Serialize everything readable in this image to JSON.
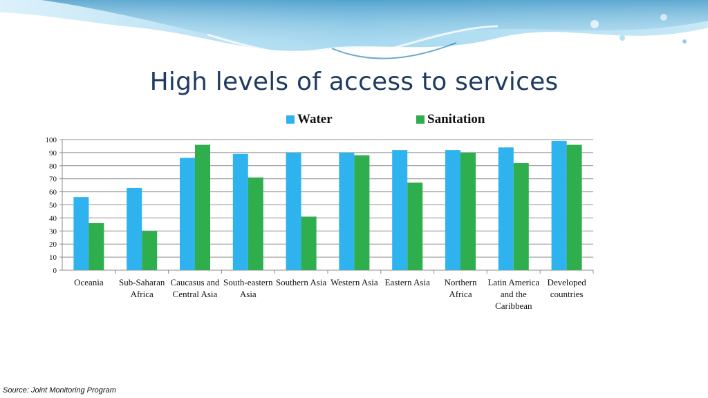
{
  "slide": {
    "title": "High levels of access to services",
    "source": "Source: Joint Monitoring Program"
  },
  "chart_data": {
    "type": "bar",
    "categories": [
      "Oceania",
      "Sub-Saharan Africa",
      "Caucasus and Central Asia",
      "South-eastern Asia",
      "Southern Asia",
      "Western Asia",
      "Eastern Asia",
      "Northern Africa",
      "Latin America and the Caribbean",
      "Developed countries"
    ],
    "series": [
      {
        "name": "Water",
        "color": "#2eb3ef",
        "values": [
          56,
          63,
          86,
          89,
          90,
          90,
          92,
          92,
          94,
          99
        ]
      },
      {
        "name": "Sanitation",
        "color": "#2fae4e",
        "values": [
          36,
          30,
          96,
          71,
          41,
          88,
          67,
          90,
          82,
          96
        ]
      }
    ],
    "ylim": [
      0,
      100
    ],
    "yticks": [
      "0",
      "10",
      "20",
      "30",
      "40",
      "50",
      "60",
      "70",
      "80",
      "90",
      "100"
    ],
    "grid": true,
    "legend_position": "top"
  }
}
